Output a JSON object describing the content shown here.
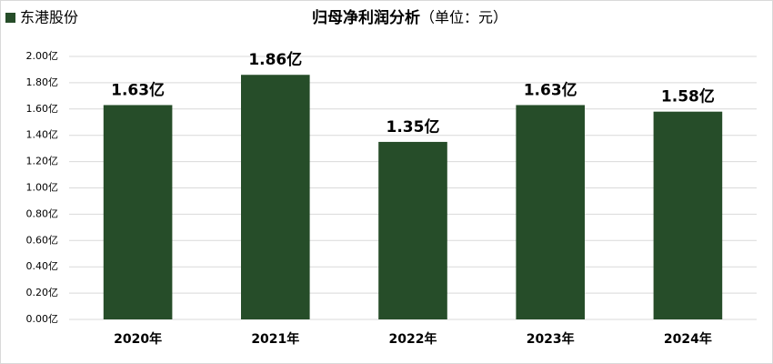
{
  "chart_data": {
    "type": "bar",
    "title": "归母净利润分析",
    "subtitle": "（单位：元）",
    "legend": "东港股份",
    "categories": [
      "2020年",
      "2021年",
      "2022年",
      "2023年",
      "2024年"
    ],
    "values": [
      1.63,
      1.86,
      1.35,
      1.63,
      1.58
    ],
    "value_labels": [
      "1.63亿",
      "1.86亿",
      "1.35亿",
      "1.63亿",
      "1.58亿"
    ],
    "color": "#264d29",
    "ylim": [
      0,
      2
    ],
    "yticks": [
      {
        "value": 0,
        "label": "0.00亿"
      },
      {
        "value": 0.2,
        "label": "0.20亿"
      },
      {
        "value": 0.4,
        "label": "0.40亿"
      },
      {
        "value": 0.6,
        "label": "0.60亿"
      },
      {
        "value": 0.8,
        "label": "0.80亿"
      },
      {
        "value": 1.0,
        "label": "1.00亿"
      },
      {
        "value": 1.2,
        "label": "1.20亿"
      },
      {
        "value": 1.4,
        "label": "1.40亿"
      },
      {
        "value": 1.6,
        "label": "1.60亿"
      },
      {
        "value": 1.8,
        "label": "1.80亿"
      },
      {
        "value": 2.0,
        "label": "2.00亿"
      }
    ],
    "grid": true
  }
}
